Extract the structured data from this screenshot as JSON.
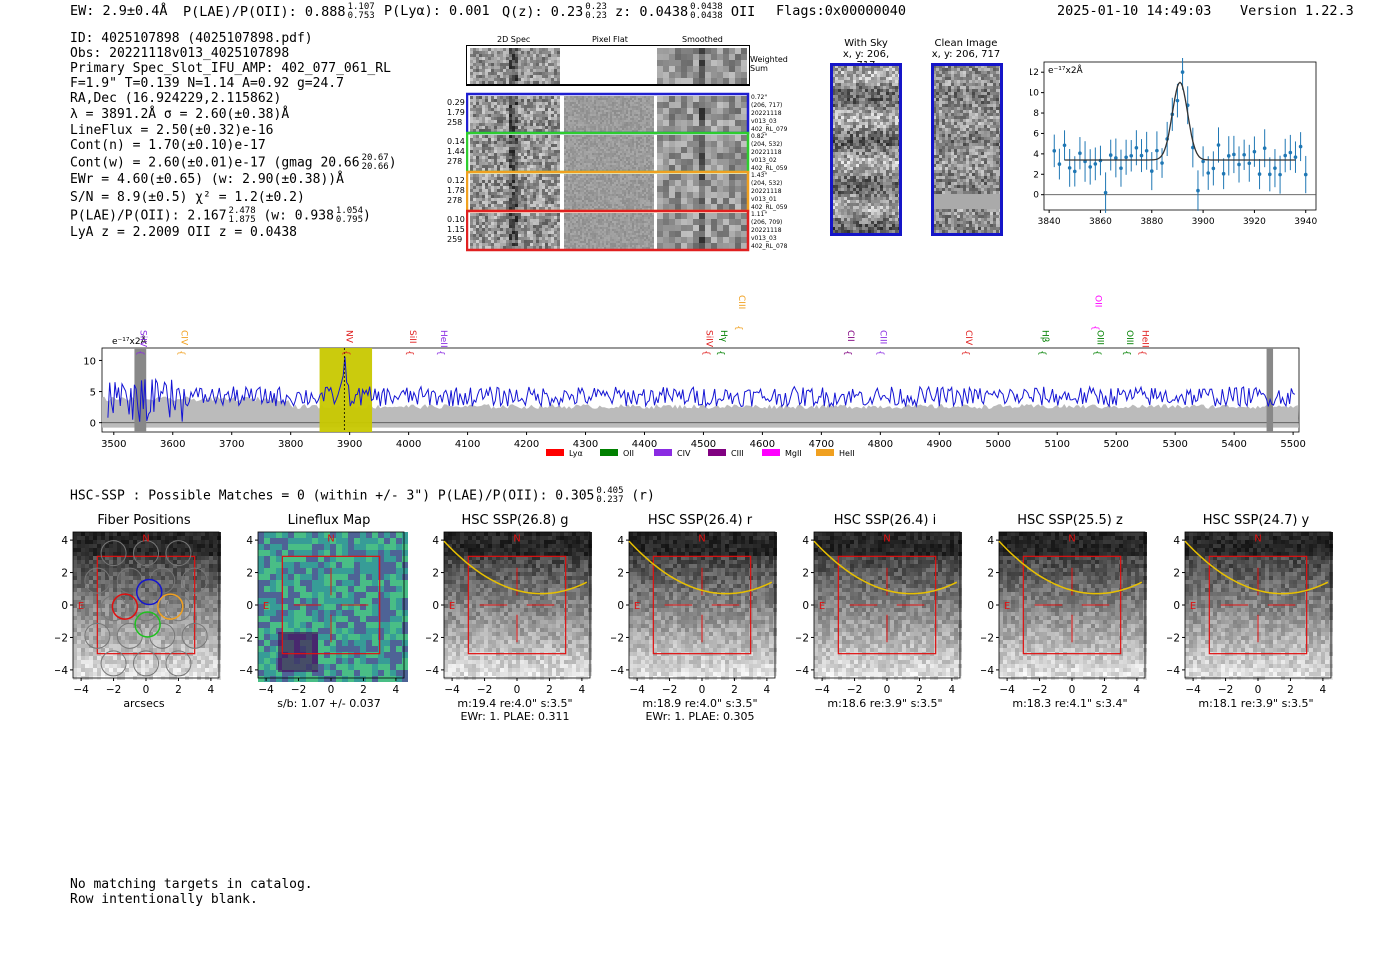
{
  "header": {
    "ew": "EW: 2.9±0.4Å",
    "plae_label": "P(LAE)/P(OII): 0.888",
    "plae_hi": "1.107",
    "plae_lo": "0.753",
    "plya": "P(Lyα): 0.001",
    "qz_label": "Q(z): 0.23",
    "qz_hi": "0.23",
    "qz_lo": "0.23",
    "z_label": "z: 0.0438",
    "z_hi": "0.0438",
    "z_lo": "0.0438",
    "z_type": "OII",
    "flags": "Flags:0x00000040",
    "datetime": "2025-01-10 14:49:03",
    "version": "Version 1.22.3"
  },
  "info": {
    "id": "ID: 4025107898 (4025107898.pdf)",
    "obs": "Obs: 20221118v013_4025107898",
    "slot": "Primary Spec_Slot_IFU_AMP: 402_077_061_RL",
    "fit": "F=1.9\"  T=0.139  N=1.14  A=0.92  g=24.7",
    "radec": "RA,Dec (16.924229,2.115862)",
    "lambda": "λ = 3891.2Å   σ = 2.60(±0.38)Å",
    "lineflux": "LineFlux = 2.50(±0.32)e-16",
    "contn": "Cont(n) = 1.70(±0.10)e-17",
    "contw": "Cont(w) = 2.60(±0.01)e-17 (gmag 20.66",
    "gmag_hi": "20.67",
    "gmag_lo": "20.66",
    "contw_close": ")",
    "ewr": "EWr = 4.60(±0.65) (w: 2.90(±0.38))Å",
    "sn": "S/N = 8.9(±0.5)   χ² = 1.2(±0.2)",
    "plae2": "P(LAE)/P(OII): 2.167",
    "plae2_hi": "2.478",
    "plae2_lo": "1.875",
    "plae2_w": "(w: 0.938",
    "plae2_w_hi": "1.054",
    "plae2_w_lo": "0.795",
    "plae2_close": ")",
    "lyaz": "LyA z = 2.2009   OII z = 0.0438"
  },
  "cutouts": {
    "col_headers": [
      "2D Spec",
      "Pixel Flat",
      "Smoothed"
    ],
    "weighted_sum": "Weighted Sum",
    "rows": [
      {
        "left": [
          "0.29",
          "1.79",
          "258"
        ],
        "right": [
          "0.72\"",
          "(206, 717)",
          "20221118",
          "v013_03",
          "402_RL_079"
        ],
        "color": "#1f1fd0"
      },
      {
        "left": [
          "0.14",
          "1.44",
          "278"
        ],
        "right": [
          "0.82\"",
          "(204, 532)",
          "20221118",
          "v013_02",
          "402_RL_059"
        ],
        "color": "#2ecc2e"
      },
      {
        "left": [
          "0.12",
          "1.78",
          "278"
        ],
        "right": [
          "1.43\"",
          "(204, 532)",
          "20221118",
          "v013_01",
          "402_RL_059"
        ],
        "color": "#f0a020"
      },
      {
        "left": [
          "0.10",
          "1.15",
          "259"
        ],
        "right": [
          "1.11\"",
          "(206, 709)",
          "20221118",
          "v013_03",
          "402_RL_078"
        ],
        "color": "#e02020"
      }
    ]
  },
  "sky": {
    "with_sky_title": "With Sky",
    "with_sky_coords": "x, y: 206, 717",
    "clean_title": "Clean Image",
    "clean_coords": "x, y: 206, 717"
  },
  "zoom_plot": {
    "unit_label": "e⁻¹⁷x2Å",
    "xticks": [
      "3840",
      "3860",
      "3880",
      "3900",
      "3920",
      "3940"
    ],
    "yticks": [
      "12",
      "10",
      "8",
      "6",
      "4",
      "2",
      "0"
    ]
  },
  "full_spec": {
    "unit_label": "e⁻¹⁷x2Å",
    "xticks": [
      "3500",
      "3600",
      "3700",
      "3800",
      "3900",
      "4000",
      "4100",
      "4200",
      "4300",
      "4400",
      "4500",
      "4600",
      "4700",
      "4800",
      "4900",
      "5000",
      "5100",
      "5200",
      "5300",
      "5400",
      "5500"
    ],
    "yticks": [
      "10",
      "5",
      "0"
    ],
    "lines": [
      {
        "label": "SiIV",
        "color": "#8a2be2",
        "wave": 3545,
        "row": 1
      },
      {
        "label": "CIV",
        "color": "#f0a020",
        "wave": 3615,
        "row": 1
      },
      {
        "label": "NV",
        "color": "#e02020",
        "wave": 3895,
        "row": 1
      },
      {
        "label": "SiII",
        "color": "#e02020",
        "wave": 4002,
        "row": 1
      },
      {
        "label": "HeII",
        "color": "#8a2be2",
        "wave": 4055,
        "row": 1
      },
      {
        "label": "CIII",
        "color": "#f0a020",
        "wave": 4560,
        "row": 0
      },
      {
        "label": "SiIV",
        "color": "#e02020",
        "wave": 4505,
        "row": 1
      },
      {
        "label": "Hγ",
        "color": "#008000",
        "wave": 4530,
        "row": 1
      },
      {
        "label": "CII",
        "color": "#800080",
        "wave": 4745,
        "row": 1
      },
      {
        "label": "CIII",
        "color": "#8a2be2",
        "wave": 4800,
        "row": 1
      },
      {
        "label": "CIV",
        "color": "#e02020",
        "wave": 4945,
        "row": 1
      },
      {
        "label": "Hβ",
        "color": "#008000",
        "wave": 5075,
        "row": 1
      },
      {
        "label": "OII",
        "color": "#ff00ff",
        "wave": 5165,
        "row": 0
      },
      {
        "label": "OIII",
        "color": "#008000",
        "wave": 5168,
        "row": 1
      },
      {
        "label": "OIII",
        "color": "#008000",
        "wave": 5218,
        "row": 1
      },
      {
        "label": "HeII",
        "color": "#e02020",
        "wave": 5245,
        "row": 1
      }
    ],
    "legend": [
      {
        "label": "Lyα",
        "color": "#ff0000"
      },
      {
        "label": "OII",
        "color": "#008000"
      },
      {
        "label": "CIV",
        "color": "#8a2be2"
      },
      {
        "label": "CIII",
        "color": "#800080"
      },
      {
        "label": "MgII",
        "color": "#ff00ff"
      },
      {
        "label": "HeII",
        "color": "#f0a020"
      }
    ]
  },
  "hsc": {
    "summary": "HSC-SSP : Possible Matches = 0 (within +/- 3\")  P(LAE)/P(OII): 0.305",
    "summary_hi": "0.405",
    "summary_lo": "0.237",
    "summary_band": "(r)",
    "panels": [
      {
        "title": "Fiber Positions",
        "caption1": "arcsecs",
        "caption2": ""
      },
      {
        "title": "Lineflux Map",
        "caption1": "s/b: 1.07 +/- 0.037",
        "caption2": ""
      },
      {
        "title": "HSC SSP(26.8) g",
        "caption1": "m:19.4  re:4.0\"  s:3.5\"",
        "caption2": "EWr: 1. PLAE: 0.311"
      },
      {
        "title": "HSC SSP(26.4) r",
        "caption1": "m:18.9  re:4.0\"  s:3.5\"",
        "caption2": "EWr: 1. PLAE: 0.305"
      },
      {
        "title": "HSC SSP(26.4) i",
        "caption1": "m:18.6  re:3.9\"  s:3.5\"",
        "caption2": ""
      },
      {
        "title": "HSC SSP(25.5) z",
        "caption1": "m:18.3  re:4.1\"  s:3.4\"",
        "caption2": ""
      },
      {
        "title": "HSC SSP(24.7) y",
        "caption1": "m:18.1  re:3.9\"  s:3.5\"",
        "caption2": ""
      }
    ],
    "ticks": [
      "4",
      "2",
      "0",
      "−2",
      "−4"
    ],
    "xticks": [
      "−4",
      "−2",
      "0",
      "2",
      "4"
    ],
    "north": "N",
    "east": "E"
  },
  "footer": {
    "line1": "No matching targets in catalog.",
    "line2": "Row intentionally blank."
  }
}
